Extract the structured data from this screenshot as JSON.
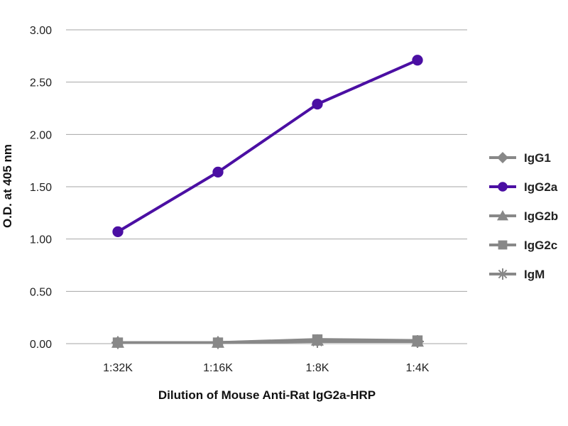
{
  "chart_data": {
    "type": "line",
    "title": "",
    "xlabel": "Dilution of Mouse Anti-Rat IgG2a-HRP",
    "ylabel": "O.D. at 405 nm",
    "categories": [
      "1:32K",
      "1:16K",
      "1:8K",
      "1:4K"
    ],
    "ylim": [
      0,
      3
    ],
    "yticks": [
      "0.00",
      "0.50",
      "1.00",
      "1.50",
      "2.00",
      "2.50",
      "3.00"
    ],
    "yticks_values": [
      0,
      0.5,
      1,
      1.5,
      2,
      2.5,
      3
    ],
    "grid": true,
    "legend_position": "right",
    "series": [
      {
        "name": "IgG1",
        "marker": "diamond",
        "color": "#888888",
        "values": [
          0.01,
          0.01,
          0.03,
          0.02
        ]
      },
      {
        "name": "IgG2a",
        "marker": "circle",
        "color": "#4B0FA3",
        "values": [
          1.07,
          1.64,
          2.29,
          2.71
        ]
      },
      {
        "name": "IgG2b",
        "marker": "triangle",
        "color": "#888888",
        "values": [
          0.01,
          0.01,
          0.03,
          0.02
        ]
      },
      {
        "name": "IgG2c",
        "marker": "square",
        "color": "#888888",
        "values": [
          0.01,
          0.01,
          0.04,
          0.03
        ]
      },
      {
        "name": "IgM",
        "marker": "star",
        "color": "#888888",
        "values": [
          0.01,
          0.01,
          0.02,
          0.02
        ]
      }
    ]
  }
}
